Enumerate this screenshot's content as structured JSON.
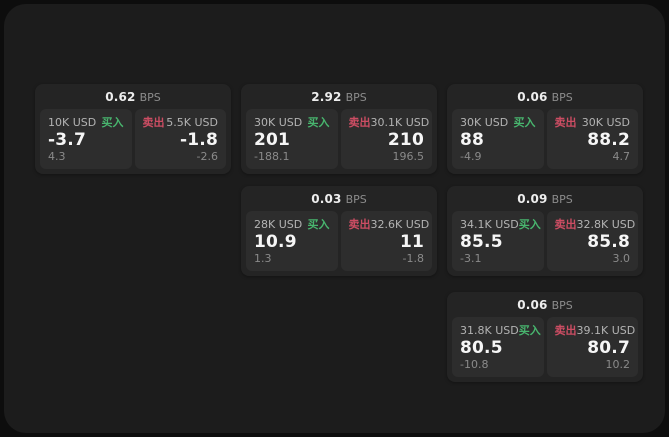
{
  "labels": {
    "bps": "BPS",
    "buy": "买入",
    "sell": "卖出"
  },
  "colors": {
    "background": "#0d0d0d",
    "surface": "#1c1c1c",
    "card": "#242424",
    "tile": "#2d2d2d",
    "buy_accent": "#48b56e",
    "sell_accent": "#cc4d63",
    "primary_text": "#f6f6f6",
    "muted_text": "#8c8c8c"
  },
  "cards": [
    {
      "bps": "0.62",
      "buy": {
        "amount": "10K USD",
        "price": "-3.7",
        "delta": "4.3"
      },
      "sell": {
        "amount": "5.5K USD",
        "price": "-1.8",
        "delta": "-2.6"
      }
    },
    {
      "bps": "2.92",
      "buy": {
        "amount": "30K USD",
        "price": "201",
        "delta": "-188.1"
      },
      "sell": {
        "amount": "30.1K USD",
        "price": "210",
        "delta": "196.5"
      }
    },
    {
      "bps": "0.06",
      "buy": {
        "amount": "30K USD",
        "price": "88",
        "delta": "-4.9"
      },
      "sell": {
        "amount": "30K USD",
        "price": "88.2",
        "delta": "4.7"
      }
    },
    {
      "bps": "0.03",
      "buy": {
        "amount": "28K USD",
        "price": "10.9",
        "delta": "1.3"
      },
      "sell": {
        "amount": "32.6K USD",
        "price": "11",
        "delta": "-1.8"
      }
    },
    {
      "bps": "0.09",
      "buy": {
        "amount": "34.1K USD",
        "price": "85.5",
        "delta": "-3.1"
      },
      "sell": {
        "amount": "32.8K USD",
        "price": "85.8",
        "delta": "3.0"
      }
    },
    {
      "bps": "0.06",
      "buy": {
        "amount": "31.8K USD",
        "price": "80.5",
        "delta": "-10.8"
      },
      "sell": {
        "amount": "39.1K USD",
        "price": "80.7",
        "delta": "10.2"
      }
    }
  ]
}
